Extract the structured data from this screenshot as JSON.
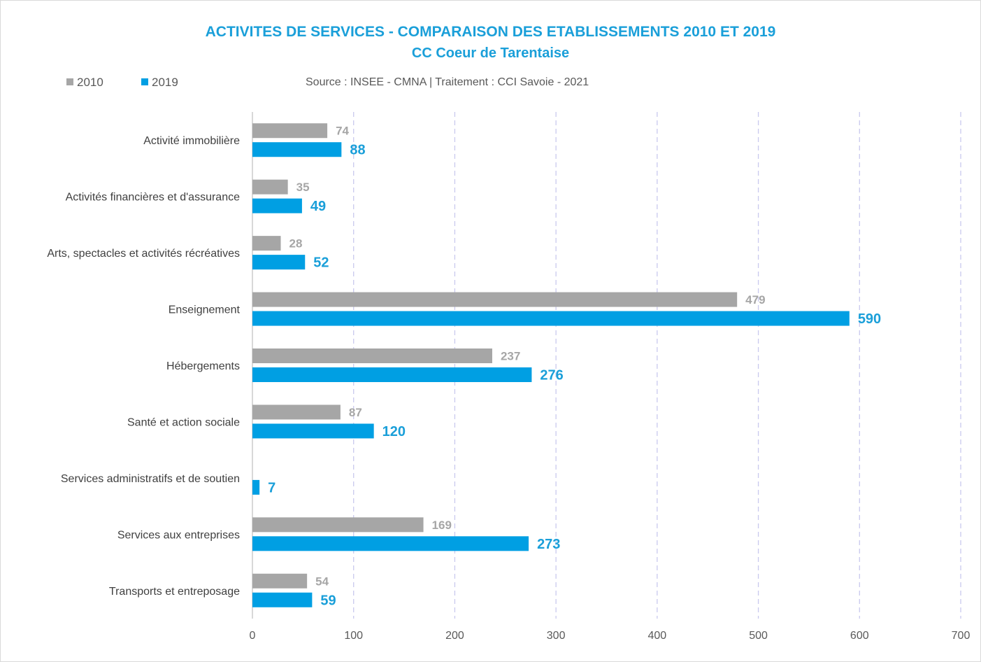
{
  "chart_data": {
    "type": "bar",
    "orientation": "horizontal",
    "title": "ACTIVITES DE SERVICES - COMPARAISON DES ETABLISSEMENTS 2010 ET 2019",
    "subtitle": "CC Coeur de Tarentaise",
    "source": "Source : INSEE - CMNA  |  Traitement : CCI Savoie - 2021",
    "categories": [
      "Activité immobilière",
      "Activités financières et d'assurance",
      "Arts, spectacles et activités récréatives",
      "Enseignement",
      "Hébergements",
      "Santé et action sociale",
      "Services administratifs et de soutien",
      "Services aux entreprises",
      "Transports et entreposage"
    ],
    "series": [
      {
        "name": "2010",
        "color": "#a6a6a6",
        "values": [
          74,
          35,
          28,
          479,
          237,
          87,
          null,
          169,
          54
        ]
      },
      {
        "name": "2019",
        "color": "#009fe3",
        "values": [
          88,
          49,
          52,
          590,
          276,
          120,
          7,
          273,
          59
        ]
      }
    ],
    "xlim": [
      0,
      700
    ],
    "xticks": [
      0,
      100,
      200,
      300,
      400,
      500,
      600,
      700
    ],
    "grid": true,
    "legend_position": "top-left",
    "accent_color": "#1a9fd9"
  }
}
